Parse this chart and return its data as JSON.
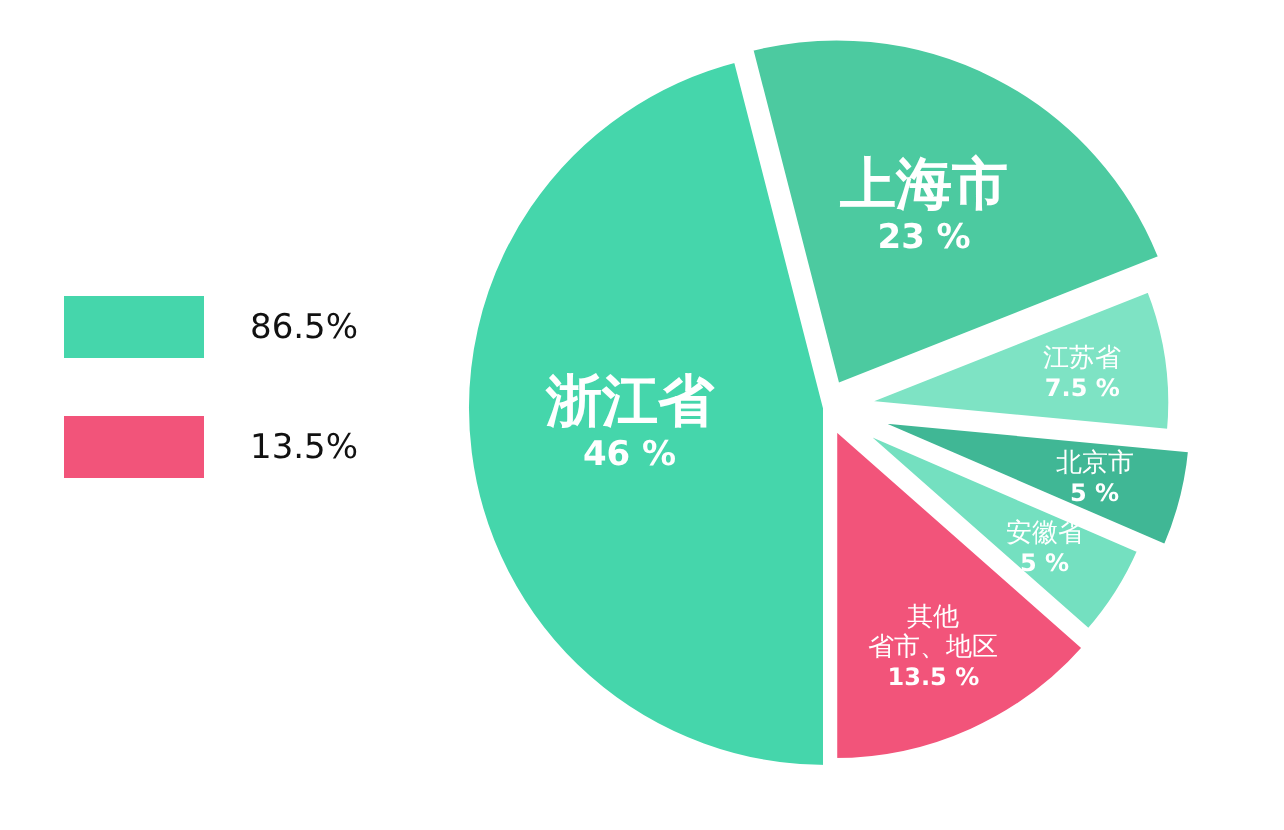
{
  "chart_data": [
    {
      "type": "other",
      "categories": [
        "86.5%",
        "13.5%"
      ],
      "colors": [
        "#45d6ab",
        "#f2547a"
      ]
    },
    {
      "type": "pie",
      "categories": [
        "上海市",
        "江苏省",
        "北京市",
        "安徽省",
        "其他省市、地区",
        "浙江省"
      ],
      "values": [
        23,
        7.5,
        5,
        5,
        13.5,
        46
      ],
      "colors": [
        "#4ccaa0",
        "#7ee3c4",
        "#40b795",
        "#74e0c0",
        "#f2547a",
        "#45d6ab"
      ],
      "value_labels": [
        "23 %",
        "7.5 %",
        "5 %",
        "5 %",
        "13.5 %",
        "46 %"
      ]
    }
  ]
}
